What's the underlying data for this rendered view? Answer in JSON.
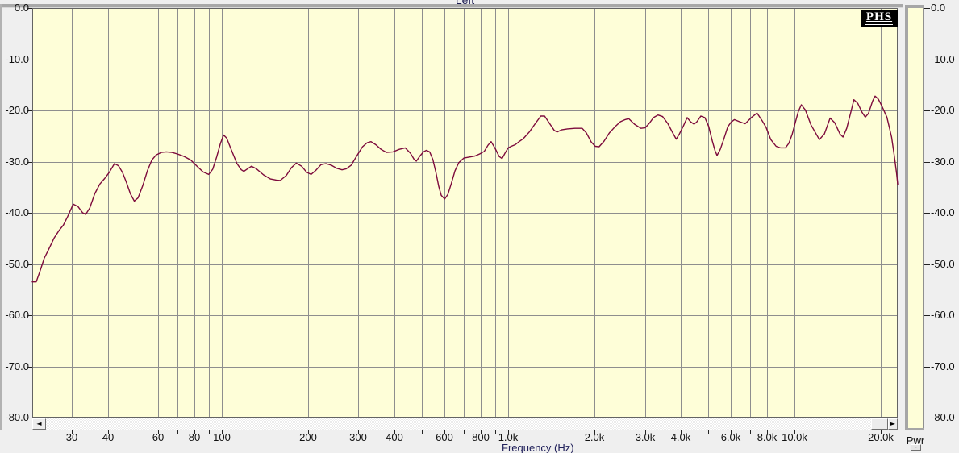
{
  "window": {
    "logo_text": "PHS",
    "pwr_label": "Pwr",
    "minimize_glyph": "-"
  },
  "colors": {
    "outer_bg": "#efefef",
    "plot_bg": "#fefed8",
    "grid": "#8e8e8e",
    "plot_border": "#636363",
    "curve": "#7d0a3c",
    "label_text": "#111111",
    "axis_title_text": "#20205a"
  },
  "scrollbar": {
    "left_arrow": "◄",
    "right_arrow": "►"
  },
  "chart_data": {
    "type": "line",
    "title": "Left",
    "xlabel": "Frequency (Hz)",
    "x_scale": "log",
    "x_range_hz": [
      21.8,
      22900
    ],
    "ylim_db": [
      0,
      -80
    ],
    "y_tick_step_db": 10,
    "y_tick_labels": [
      "0.0",
      "-10.0",
      "-20.0",
      "-30.0",
      "-40.0",
      "-50.0",
      "-60.0",
      "-70.0",
      "-80.0"
    ],
    "x_gridlines_hz": [
      30,
      40,
      50,
      60,
      70,
      80,
      90,
      100,
      200,
      300,
      400,
      500,
      600,
      700,
      800,
      900,
      1000,
      2000,
      3000,
      4000,
      5000,
      6000,
      7000,
      8000,
      9000,
      10000,
      20000
    ],
    "x_tick_labels": [
      {
        "f": 30,
        "label": "30"
      },
      {
        "f": 40,
        "label": "40"
      },
      {
        "f": 60,
        "label": "60"
      },
      {
        "f": 80,
        "label": "80"
      },
      {
        "f": 100,
        "label": "100"
      },
      {
        "f": 200,
        "label": "200"
      },
      {
        "f": 300,
        "label": "300"
      },
      {
        "f": 400,
        "label": "400"
      },
      {
        "f": 600,
        "label": "600"
      },
      {
        "f": 800,
        "label": "800"
      },
      {
        "f": 1000,
        "label": "1.0k"
      },
      {
        "f": 2000,
        "label": "2.0k"
      },
      {
        "f": 3000,
        "label": "3.0k"
      },
      {
        "f": 4000,
        "label": "4.0k"
      },
      {
        "f": 6000,
        "label": "6.0k"
      },
      {
        "f": 8000,
        "label": "8.0k"
      },
      {
        "f": 10000,
        "label": "10.0k"
      },
      {
        "f": 20000,
        "label": "20.0k"
      }
    ],
    "series": [
      {
        "name": "Left",
        "color": "#7d0a3c",
        "points_hz_db": [
          [
            21.8,
            -53.5
          ],
          [
            22.5,
            -53.5
          ],
          [
            23.2,
            -51.4
          ],
          [
            24,
            -48.9
          ],
          [
            25,
            -46.9
          ],
          [
            26,
            -44.9
          ],
          [
            27,
            -43.5
          ],
          [
            28,
            -42.4
          ],
          [
            29,
            -40.7
          ],
          [
            30.3,
            -38.3
          ],
          [
            31.5,
            -38.8
          ],
          [
            32.7,
            -40.0
          ],
          [
            33.5,
            -40.3
          ],
          [
            34.6,
            -39.1
          ],
          [
            36,
            -36.3
          ],
          [
            37.5,
            -34.4
          ],
          [
            39,
            -33.3
          ],
          [
            40.5,
            -32.1
          ],
          [
            42.2,
            -30.4
          ],
          [
            43.6,
            -30.8
          ],
          [
            45,
            -32.1
          ],
          [
            46.5,
            -34.1
          ],
          [
            48,
            -36.3
          ],
          [
            49.5,
            -37.7
          ],
          [
            51,
            -37.1
          ],
          [
            53,
            -34.7
          ],
          [
            55,
            -31.8
          ],
          [
            57,
            -29.7
          ],
          [
            59,
            -28.7
          ],
          [
            61.5,
            -28.2
          ],
          [
            64,
            -28.1
          ],
          [
            67,
            -28.2
          ],
          [
            70,
            -28.5
          ],
          [
            74,
            -29.0
          ],
          [
            78,
            -29.7
          ],
          [
            82,
            -30.9
          ],
          [
            86,
            -32.0
          ],
          [
            90,
            -32.5
          ],
          [
            93,
            -31.5
          ],
          [
            96,
            -29.1
          ],
          [
            99,
            -26.4
          ],
          [
            101.5,
            -24.8
          ],
          [
            104,
            -25.4
          ],
          [
            108,
            -27.7
          ],
          [
            113,
            -30.4
          ],
          [
            117,
            -31.6
          ],
          [
            119.5,
            -31.9
          ],
          [
            123,
            -31.4
          ],
          [
            127,
            -30.9
          ],
          [
            132,
            -31.4
          ],
          [
            140,
            -32.6
          ],
          [
            148,
            -33.4
          ],
          [
            155,
            -33.6
          ],
          [
            160,
            -33.7
          ],
          [
            168,
            -32.7
          ],
          [
            175,
            -31.2
          ],
          [
            182,
            -30.3
          ],
          [
            190,
            -30.9
          ],
          [
            198,
            -32.1
          ],
          [
            205,
            -32.5
          ],
          [
            213,
            -31.7
          ],
          [
            222,
            -30.6
          ],
          [
            231,
            -30.4
          ],
          [
            241,
            -30.7
          ],
          [
            252,
            -31.3
          ],
          [
            263,
            -31.6
          ],
          [
            272,
            -31.4
          ],
          [
            283,
            -30.7
          ],
          [
            296,
            -28.9
          ],
          [
            310,
            -27.1
          ],
          [
            322,
            -26.3
          ],
          [
            332,
            -26.1
          ],
          [
            345,
            -26.7
          ],
          [
            360,
            -27.6
          ],
          [
            376,
            -28.2
          ],
          [
            396,
            -28.1
          ],
          [
            416,
            -27.6
          ],
          [
            437,
            -27.3
          ],
          [
            456,
            -28.4
          ],
          [
            470,
            -29.6
          ],
          [
            478,
            -29.9
          ],
          [
            492,
            -28.9
          ],
          [
            506,
            -28.1
          ],
          [
            518,
            -27.8
          ],
          [
            532,
            -28.1
          ],
          [
            546,
            -29.6
          ],
          [
            560,
            -32.2
          ],
          [
            572,
            -34.8
          ],
          [
            584,
            -36.6
          ],
          [
            600,
            -37.3
          ],
          [
            616,
            -36.4
          ],
          [
            633,
            -34.3
          ],
          [
            652,
            -31.8
          ],
          [
            672,
            -30.2
          ],
          [
            700,
            -29.3
          ],
          [
            733,
            -29.1
          ],
          [
            766,
            -28.9
          ],
          [
            795,
            -28.5
          ],
          [
            825,
            -28.0
          ],
          [
            850,
            -26.8
          ],
          [
            872,
            -26.1
          ],
          [
            900,
            -27.4
          ],
          [
            930,
            -29.0
          ],
          [
            952,
            -29.4
          ],
          [
            976,
            -28.3
          ],
          [
            1000,
            -27.3
          ],
          [
            1025,
            -27.0
          ],
          [
            1058,
            -26.7
          ],
          [
            1092,
            -26.1
          ],
          [
            1130,
            -25.5
          ],
          [
            1185,
            -24.2
          ],
          [
            1242,
            -22.6
          ],
          [
            1300,
            -21.1
          ],
          [
            1340,
            -21.1
          ],
          [
            1400,
            -22.7
          ],
          [
            1448,
            -23.9
          ],
          [
            1482,
            -24.2
          ],
          [
            1535,
            -23.8
          ],
          [
            1610,
            -23.6
          ],
          [
            1710,
            -23.5
          ],
          [
            1812,
            -23.5
          ],
          [
            1875,
            -24.4
          ],
          [
            1952,
            -26.2
          ],
          [
            2015,
            -27.0
          ],
          [
            2075,
            -27.1
          ],
          [
            2160,
            -26.0
          ],
          [
            2255,
            -24.4
          ],
          [
            2360,
            -23.2
          ],
          [
            2465,
            -22.2
          ],
          [
            2560,
            -21.8
          ],
          [
            2635,
            -21.6
          ],
          [
            2760,
            -22.7
          ],
          [
            2905,
            -23.5
          ],
          [
            3005,
            -23.4
          ],
          [
            3110,
            -22.5
          ],
          [
            3215,
            -21.4
          ],
          [
            3335,
            -20.9
          ],
          [
            3460,
            -21.2
          ],
          [
            3610,
            -22.6
          ],
          [
            3755,
            -24.4
          ],
          [
            3860,
            -25.6
          ],
          [
            3960,
            -24.6
          ],
          [
            4085,
            -23.1
          ],
          [
            4215,
            -21.4
          ],
          [
            4330,
            -22.2
          ],
          [
            4455,
            -22.7
          ],
          [
            4560,
            -22.2
          ],
          [
            4705,
            -21.1
          ],
          [
            4860,
            -21.4
          ],
          [
            5010,
            -23.1
          ],
          [
            5160,
            -26.0
          ],
          [
            5270,
            -27.8
          ],
          [
            5360,
            -28.8
          ],
          [
            5500,
            -27.6
          ],
          [
            5650,
            -25.7
          ],
          [
            5840,
            -23.2
          ],
          [
            6000,
            -22.3
          ],
          [
            6160,
            -21.8
          ],
          [
            6420,
            -22.2
          ],
          [
            6720,
            -22.6
          ],
          [
            7090,
            -21.3
          ],
          [
            7390,
            -20.5
          ],
          [
            7700,
            -22.0
          ],
          [
            7950,
            -23.3
          ],
          [
            8260,
            -25.7
          ],
          [
            8620,
            -27.0
          ],
          [
            8920,
            -27.3
          ],
          [
            9290,
            -27.3
          ],
          [
            9550,
            -26.4
          ],
          [
            9800,
            -24.7
          ],
          [
            10050,
            -22.4
          ],
          [
            10300,
            -20.2
          ],
          [
            10550,
            -18.9
          ],
          [
            10900,
            -19.9
          ],
          [
            11400,
            -22.8
          ],
          [
            12200,
            -25.7
          ],
          [
            12700,
            -24.6
          ],
          [
            13300,
            -21.5
          ],
          [
            13800,
            -22.4
          ],
          [
            14400,
            -24.6
          ],
          [
            14750,
            -25.2
          ],
          [
            15200,
            -23.5
          ],
          [
            15700,
            -20.4
          ],
          [
            16100,
            -17.9
          ],
          [
            16600,
            -18.6
          ],
          [
            17200,
            -20.4
          ],
          [
            17650,
            -21.3
          ],
          [
            18100,
            -20.6
          ],
          [
            18700,
            -18.2
          ],
          [
            19100,
            -17.2
          ],
          [
            19600,
            -17.8
          ],
          [
            20100,
            -19.0
          ],
          [
            21000,
            -21.3
          ],
          [
            21800,
            -25.2
          ],
          [
            22300,
            -29.0
          ],
          [
            22700,
            -32.3
          ],
          [
            22900,
            -34.4
          ]
        ]
      }
    ],
    "legend": "none",
    "grid": "on"
  }
}
